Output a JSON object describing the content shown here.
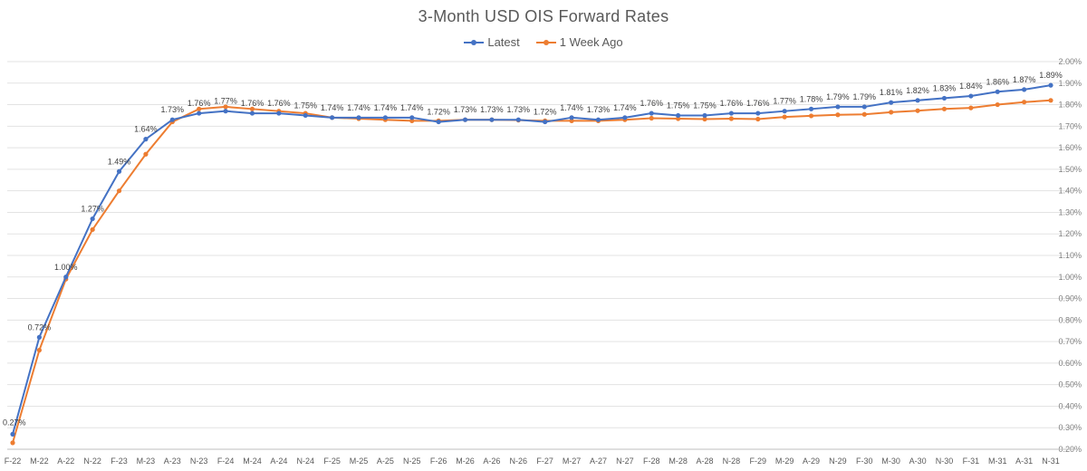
{
  "chart_data": {
    "type": "line",
    "title": "3-Month USD OIS Forward Rates",
    "xlabel": "",
    "ylabel": "",
    "categories": [
      "F-22",
      "M-22",
      "A-22",
      "N-22",
      "F-23",
      "M-23",
      "A-23",
      "N-23",
      "F-24",
      "M-24",
      "A-24",
      "N-24",
      "F-25",
      "M-25",
      "A-25",
      "N-25",
      "F-26",
      "M-26",
      "A-26",
      "N-26",
      "F-27",
      "M-27",
      "A-27",
      "N-27",
      "F-28",
      "M-28",
      "A-28",
      "N-28",
      "F-29",
      "M-29",
      "A-29",
      "N-29",
      "F-30",
      "M-30",
      "A-30",
      "N-30",
      "F-31",
      "M-31",
      "A-31",
      "N-31"
    ],
    "y_ticks": [
      "0.20%",
      "0.30%",
      "0.40%",
      "0.50%",
      "0.60%",
      "0.70%",
      "0.80%",
      "0.90%",
      "1.00%",
      "1.10%",
      "1.20%",
      "1.30%",
      "1.40%",
      "1.50%",
      "1.60%",
      "1.70%",
      "1.80%",
      "1.90%",
      "2.00%"
    ],
    "ylim": [
      0.2,
      2.0
    ],
    "grid": true,
    "legend_position": "top",
    "series": [
      {
        "name": "Latest",
        "color": "#4472C4",
        "values": [
          0.27,
          0.72,
          1.0,
          1.27,
          1.49,
          1.64,
          1.73,
          1.76,
          1.77,
          1.76,
          1.76,
          1.75,
          1.74,
          1.74,
          1.74,
          1.74,
          1.72,
          1.73,
          1.73,
          1.73,
          1.72,
          1.74,
          1.73,
          1.74,
          1.76,
          1.75,
          1.75,
          1.76,
          1.76,
          1.77,
          1.78,
          1.79,
          1.79,
          1.81,
          1.82,
          1.83,
          1.84,
          1.86,
          1.87,
          1.89
        ],
        "labels": [
          "0.27%",
          "0.72%",
          "1.00%",
          "1.27%",
          "1.49%",
          "1.64%",
          "1.73%",
          "1.76%",
          "1.77%",
          "1.76%",
          "1.76%",
          "1.75%",
          "1.74%",
          "1.74%",
          "1.74%",
          "1.74%",
          "1.72%",
          "1.73%",
          "1.73%",
          "1.73%",
          "1.72%",
          "1.74%",
          "1.73%",
          "1.74%",
          "1.76%",
          "1.75%",
          "1.75%",
          "1.76%",
          "1.76%",
          "1.77%",
          "1.78%",
          "1.79%",
          "1.79%",
          "1.81%",
          "1.82%",
          "1.83%",
          "1.84%",
          "1.86%",
          "1.87%",
          "1.89%"
        ]
      },
      {
        "name": "1 Week Ago",
        "color": "#ED7D31",
        "values": [
          0.23,
          0.66,
          0.99,
          1.22,
          1.4,
          1.57,
          1.72,
          1.78,
          1.79,
          1.78,
          1.77,
          1.76,
          1.74,
          1.735,
          1.73,
          1.725,
          1.725,
          1.73,
          1.73,
          1.728,
          1.725,
          1.725,
          1.725,
          1.73,
          1.737,
          1.735,
          1.733,
          1.735,
          1.733,
          1.743,
          1.748,
          1.753,
          1.755,
          1.765,
          1.772,
          1.78,
          1.785,
          1.8,
          1.812,
          1.82
        ]
      }
    ]
  }
}
